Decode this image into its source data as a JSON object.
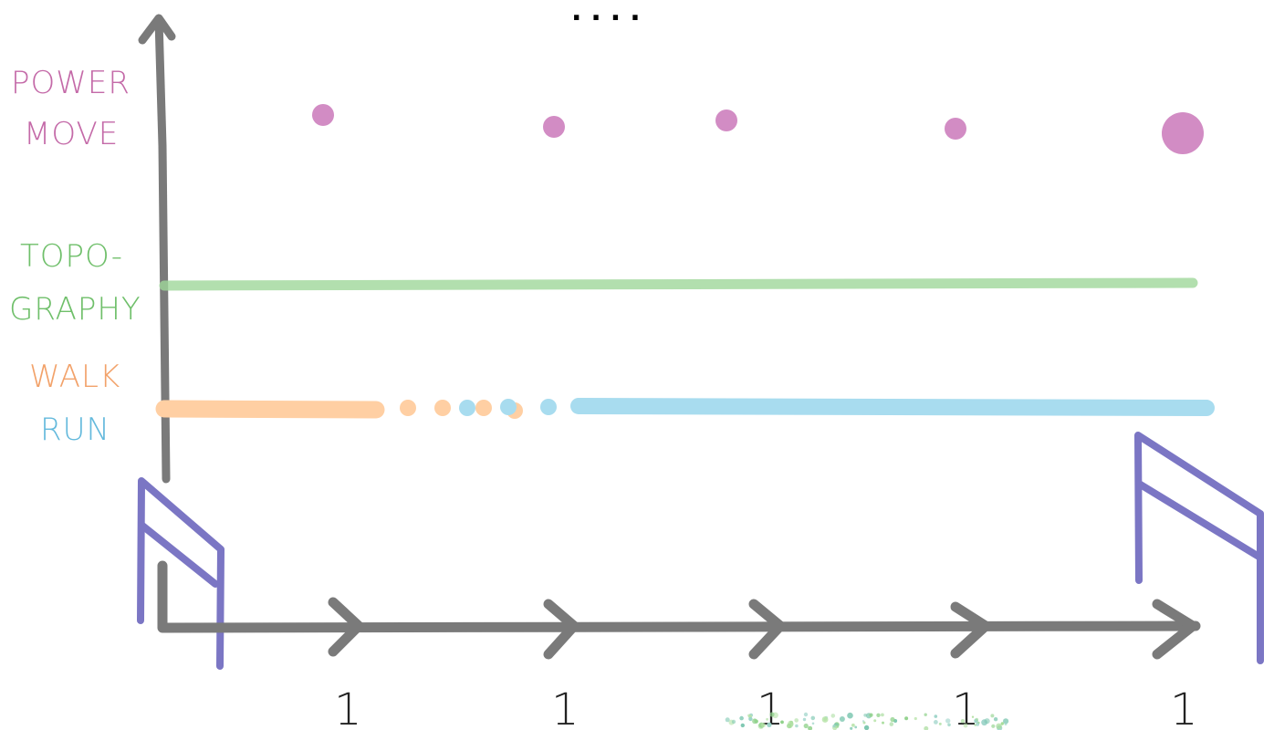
{
  "header": {
    "ellipsis": "...."
  },
  "labels": {
    "power_move": [
      "POWER",
      "MOVE"
    ],
    "topography": [
      "TOPO-",
      "GRAPHY"
    ],
    "walk": "WALK",
    "run": "RUN"
  },
  "ticks": [
    "1",
    "1",
    "1",
    "1",
    "1"
  ],
  "colors": {
    "axis": "#7a7a7a",
    "power_move": "#d28cc4",
    "power_move_text": "#c46aa8",
    "topography": "#9fd79a",
    "topography_text": "#6fbf6a",
    "walk": "#ffcfa3",
    "walk_text": "#f2a26a",
    "run": "#a8dcef",
    "run_text": "#63b9dc",
    "hurdle": "#7b76c4",
    "grass": "#8fd18a"
  },
  "icons": [
    "up-arrow-icon",
    "chevron-right-icon",
    "hurdle-icon"
  ]
}
